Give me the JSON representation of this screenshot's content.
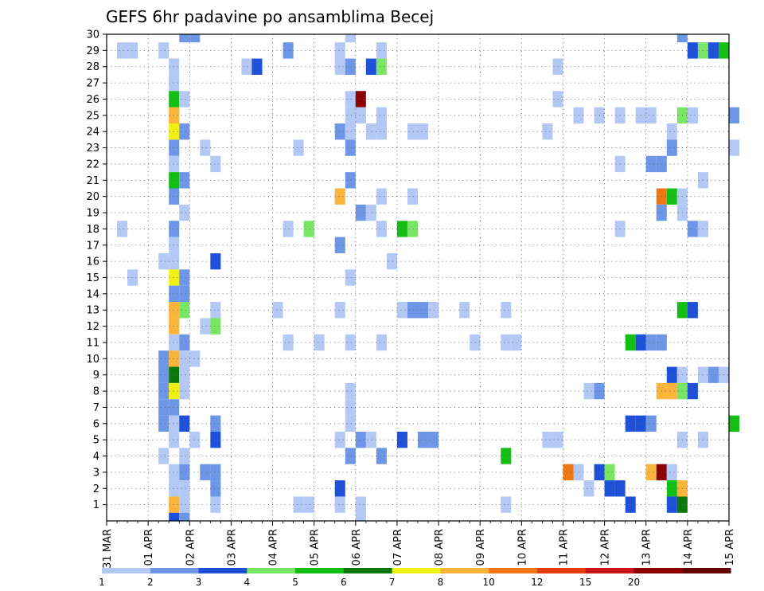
{
  "chart_data": {
    "type": "heatmap",
    "title": "GEFS 6hr padavine po ansamblima Becej",
    "x_tick_labels": [
      "31 MAR",
      "01 APR",
      "02 APR",
      "03 APR",
      "04 APR",
      "05 APR",
      "06 APR",
      "07 APR",
      "08 APR",
      "09 APR",
      "10 APR",
      "11 APR",
      "12 APR",
      "13 APR",
      "14 APR",
      "15 APR"
    ],
    "x_step_hours": 6,
    "x_range_steps": [
      0,
      60
    ],
    "y_range": [
      0,
      30
    ],
    "y_tick_labels": [
      1,
      2,
      3,
      4,
      5,
      6,
      7,
      8,
      9,
      10,
      11,
      12,
      13,
      14,
      15,
      16,
      17,
      18,
      19,
      20,
      21,
      22,
      23,
      24,
      25,
      26,
      27,
      28,
      29,
      30
    ],
    "grid": true,
    "colorbar": {
      "position": "bottom",
      "bins": [
        {
          "label": "1",
          "color": "#b4c8f5"
        },
        {
          "label": "2",
          "color": "#6e96e6"
        },
        {
          "label": "3",
          "color": "#1e50d8"
        },
        {
          "label": "4",
          "color": "#78e664"
        },
        {
          "label": "5",
          "color": "#14be14"
        },
        {
          "label": "6",
          "color": "#0a780a"
        },
        {
          "label": "7",
          "color": "#f0f014"
        },
        {
          "label": "8",
          "color": "#fab43c"
        },
        {
          "label": "10",
          "color": "#f07814"
        },
        {
          "label": "12",
          "color": "#e63c0a"
        },
        {
          "label": "15",
          "color": "#c81414"
        },
        {
          "label": "20",
          "color": "#8c0000"
        },
        {
          "label": "",
          "color": "#640000"
        }
      ]
    },
    "cell_value_note": "each cell: [step (6h steps from 31 MAR 00Z), member, precip class 1-12]",
    "cells": [
      [
        7,
        30,
        2
      ],
      [
        8,
        30,
        2
      ],
      [
        23,
        30,
        1
      ],
      [
        55,
        30,
        2
      ],
      [
        1,
        29,
        1
      ],
      [
        2,
        29,
        1
      ],
      [
        5,
        29,
        1
      ],
      [
        17,
        29,
        2
      ],
      [
        22,
        29,
        1
      ],
      [
        26,
        29,
        1
      ],
      [
        56,
        29,
        3
      ],
      [
        57,
        29,
        4
      ],
      [
        58,
        29,
        3
      ],
      [
        59,
        29,
        5
      ],
      [
        6,
        28,
        1
      ],
      [
        13,
        28,
        1
      ],
      [
        14,
        28,
        3
      ],
      [
        22,
        28,
        1
      ],
      [
        23,
        28,
        2
      ],
      [
        25,
        28,
        3
      ],
      [
        26,
        28,
        4
      ],
      [
        43,
        28,
        1
      ],
      [
        6,
        27,
        1
      ],
      [
        6,
        26,
        5
      ],
      [
        7,
        26,
        1
      ],
      [
        23,
        26,
        1
      ],
      [
        24,
        26,
        12
      ],
      [
        43,
        26,
        1
      ],
      [
        6,
        25,
        8
      ],
      [
        23,
        25,
        1
      ],
      [
        24,
        25,
        1
      ],
      [
        26,
        25,
        1
      ],
      [
        45,
        25,
        1
      ],
      [
        47,
        25,
        1
      ],
      [
        49,
        25,
        1
      ],
      [
        51,
        25,
        1
      ],
      [
        52,
        25,
        1
      ],
      [
        55,
        25,
        4
      ],
      [
        56,
        25,
        1
      ],
      [
        60,
        25,
        2
      ],
      [
        6,
        24,
        7
      ],
      [
        7,
        24,
        2
      ],
      [
        22,
        24,
        2
      ],
      [
        23,
        24,
        1
      ],
      [
        25,
        24,
        1
      ],
      [
        26,
        24,
        1
      ],
      [
        29,
        24,
        1
      ],
      [
        30,
        24,
        1
      ],
      [
        42,
        24,
        1
      ],
      [
        54,
        24,
        1
      ],
      [
        6,
        23,
        2
      ],
      [
        9,
        23,
        1
      ],
      [
        18,
        23,
        1
      ],
      [
        23,
        23,
        2
      ],
      [
        54,
        23,
        2
      ],
      [
        60,
        23,
        1
      ],
      [
        6,
        22,
        1
      ],
      [
        10,
        22,
        1
      ],
      [
        49,
        22,
        1
      ],
      [
        52,
        22,
        2
      ],
      [
        53,
        22,
        2
      ],
      [
        6,
        21,
        5
      ],
      [
        7,
        21,
        2
      ],
      [
        23,
        21,
        2
      ],
      [
        57,
        21,
        1
      ],
      [
        6,
        20,
        2
      ],
      [
        22,
        20,
        8
      ],
      [
        26,
        20,
        1
      ],
      [
        29,
        20,
        1
      ],
      [
        53,
        20,
        9
      ],
      [
        54,
        20,
        5
      ],
      [
        55,
        20,
        1
      ],
      [
        7,
        19,
        1
      ],
      [
        24,
        19,
        2
      ],
      [
        25,
        19,
        1
      ],
      [
        53,
        19,
        2
      ],
      [
        55,
        19,
        1
      ],
      [
        1,
        18,
        1
      ],
      [
        6,
        18,
        2
      ],
      [
        17,
        18,
        1
      ],
      [
        19,
        18,
        4
      ],
      [
        26,
        18,
        1
      ],
      [
        28,
        18,
        5
      ],
      [
        29,
        18,
        4
      ],
      [
        49,
        18,
        1
      ],
      [
        56,
        18,
        2
      ],
      [
        57,
        18,
        1
      ],
      [
        6,
        17,
        1
      ],
      [
        22,
        17,
        2
      ],
      [
        5,
        16,
        1
      ],
      [
        6,
        16,
        1
      ],
      [
        10,
        16,
        3
      ],
      [
        27,
        16,
        1
      ],
      [
        6,
        15,
        7
      ],
      [
        7,
        15,
        2
      ],
      [
        2,
        15,
        1
      ],
      [
        23,
        15,
        1
      ],
      [
        6,
        14,
        2
      ],
      [
        7,
        14,
        2
      ],
      [
        6,
        13,
        8
      ],
      [
        7,
        13,
        4
      ],
      [
        10,
        13,
        1
      ],
      [
        16,
        13,
        1
      ],
      [
        22,
        13,
        1
      ],
      [
        28,
        13,
        1
      ],
      [
        29,
        13,
        2
      ],
      [
        30,
        13,
        2
      ],
      [
        31,
        13,
        1
      ],
      [
        34,
        13,
        1
      ],
      [
        38,
        13,
        1
      ],
      [
        55,
        13,
        5
      ],
      [
        56,
        13,
        3
      ],
      [
        6,
        12,
        8
      ],
      [
        9,
        12,
        1
      ],
      [
        10,
        12,
        4
      ],
      [
        6,
        11,
        1
      ],
      [
        7,
        11,
        2
      ],
      [
        17,
        11,
        1
      ],
      [
        20,
        11,
        1
      ],
      [
        23,
        11,
        1
      ],
      [
        26,
        11,
        1
      ],
      [
        35,
        11,
        1
      ],
      [
        38,
        11,
        1
      ],
      [
        39,
        11,
        1
      ],
      [
        50,
        11,
        5
      ],
      [
        51,
        11,
        3
      ],
      [
        52,
        11,
        2
      ],
      [
        53,
        11,
        2
      ],
      [
        5,
        10,
        2
      ],
      [
        6,
        10,
        8
      ],
      [
        7,
        10,
        1
      ],
      [
        8,
        10,
        1
      ],
      [
        5,
        9,
        2
      ],
      [
        6,
        9,
        6
      ],
      [
        7,
        9,
        1
      ],
      [
        54,
        9,
        3
      ],
      [
        55,
        9,
        1
      ],
      [
        57,
        9,
        1
      ],
      [
        58,
        9,
        2
      ],
      [
        59,
        9,
        1
      ],
      [
        5,
        8,
        2
      ],
      [
        6,
        8,
        7
      ],
      [
        7,
        8,
        1
      ],
      [
        23,
        8,
        1
      ],
      [
        46,
        8,
        1
      ],
      [
        47,
        8,
        2
      ],
      [
        53,
        8,
        8
      ],
      [
        54,
        8,
        8
      ],
      [
        55,
        8,
        4
      ],
      [
        56,
        8,
        3
      ],
      [
        5,
        7,
        2
      ],
      [
        6,
        7,
        2
      ],
      [
        23,
        7,
        1
      ],
      [
        5,
        6,
        2
      ],
      [
        6,
        6,
        1
      ],
      [
        7,
        6,
        3
      ],
      [
        10,
        6,
        2
      ],
      [
        23,
        6,
        1
      ],
      [
        50,
        6,
        3
      ],
      [
        51,
        6,
        3
      ],
      [
        52,
        6,
        2
      ],
      [
        60,
        6,
        5
      ],
      [
        6,
        5,
        1
      ],
      [
        8,
        5,
        1
      ],
      [
        10,
        5,
        3
      ],
      [
        22,
        5,
        1
      ],
      [
        24,
        5,
        2
      ],
      [
        25,
        5,
        1
      ],
      [
        28,
        5,
        3
      ],
      [
        30,
        5,
        2
      ],
      [
        31,
        5,
        2
      ],
      [
        42,
        5,
        1
      ],
      [
        43,
        5,
        1
      ],
      [
        55,
        5,
        1
      ],
      [
        57,
        5,
        1
      ],
      [
        5,
        4,
        1
      ],
      [
        7,
        4,
        1
      ],
      [
        23,
        4,
        2
      ],
      [
        26,
        4,
        2
      ],
      [
        38,
        4,
        5
      ],
      [
        6,
        3,
        1
      ],
      [
        7,
        3,
        2
      ],
      [
        9,
        3,
        2
      ],
      [
        10,
        3,
        2
      ],
      [
        44,
        3,
        9
      ],
      [
        45,
        3,
        1
      ],
      [
        47,
        3,
        3
      ],
      [
        48,
        3,
        4
      ],
      [
        52,
        3,
        8
      ],
      [
        53,
        3,
        12
      ],
      [
        54,
        3,
        1
      ],
      [
        6,
        2,
        1
      ],
      [
        7,
        2,
        1
      ],
      [
        10,
        2,
        2
      ],
      [
        22,
        2,
        3
      ],
      [
        46,
        2,
        1
      ],
      [
        48,
        2,
        3
      ],
      [
        49,
        2,
        3
      ],
      [
        54,
        2,
        5
      ],
      [
        55,
        2,
        8
      ],
      [
        6,
        1,
        8
      ],
      [
        7,
        1,
        1
      ],
      [
        10,
        1,
        1
      ],
      [
        18,
        1,
        1
      ],
      [
        19,
        1,
        1
      ],
      [
        22,
        1,
        1
      ],
      [
        24,
        1,
        1
      ],
      [
        38,
        1,
        1
      ],
      [
        50,
        1,
        3
      ],
      [
        54,
        1,
        3
      ],
      [
        55,
        1,
        6
      ],
      [
        6,
        0,
        3
      ],
      [
        7,
        0,
        2
      ],
      [
        24,
        0,
        1
      ]
    ]
  }
}
